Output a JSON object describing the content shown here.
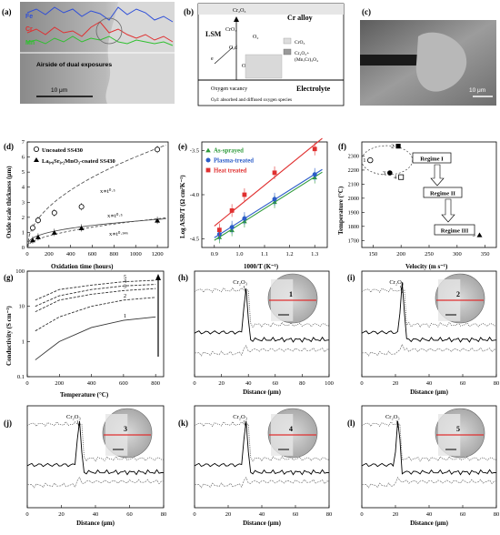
{
  "panel_letters": [
    "(a)",
    "(b)",
    "(c)",
    "(d)",
    "(e)",
    "(f)",
    "(g)",
    "(h)",
    "(i)",
    "(j)",
    "(k)",
    "(l)"
  ],
  "panel_a": {
    "elements": [
      "Fe",
      "Cr",
      "Mn"
    ],
    "caption": "Airside of dual exposures",
    "scale_bar": "10 μm",
    "colors": {
      "Fe": "#3050d8",
      "Cr": "#e03030",
      "Mn": "#30c030"
    }
  },
  "panel_b": {
    "cr2o3_top": "Cr₂O₃",
    "cr_alloy": "Cr alloy",
    "lsm": "LSM",
    "cro3": "CrO₃",
    "o2": "O₂",
    "o_ad": "Oₐd",
    "e": "e",
    "o2minus": "O²⁻",
    "legend_1": "CrO₃",
    "legend_2a": "Cr₂O₃+",
    "legend_2b": "(Mn,Cr)₃O₄",
    "oxygen_vacancy": "Oxygen vacancy",
    "electrolyte": "Electrolyte",
    "footnote": "Oₐd: absorbed and diffused oxygen species"
  },
  "panel_c": {
    "scale_bar": "10 μm"
  },
  "chart_data": [
    {
      "id": "d",
      "type": "scatter",
      "xlabel": "Oxidation time (hours)",
      "ylabel": "Oxide scale thickness (μm)",
      "xlim": [
        0,
        1300
      ],
      "ylim": [
        0,
        7
      ],
      "xticks": [
        "0",
        "200",
        "400",
        "600",
        "800",
        "1000",
        "1200"
      ],
      "yticks": [
        "0",
        "1",
        "2",
        "3",
        "4",
        "5",
        "6",
        "7"
      ],
      "legend": [
        "Uncoated SS430",
        "La₀.₈Sr₀.₂MnO₃-coated SS430"
      ],
      "series": [
        {
          "name": "Uncoated SS430",
          "x": [
            50,
            100,
            250,
            500,
            1200
          ],
          "y": [
            1.3,
            1.8,
            2.3,
            2.7,
            6.5
          ]
        },
        {
          "name": "La₀.₈Sr₀.₂MnO₃-coated SS430",
          "x": [
            50,
            100,
            250,
            500,
            1200
          ],
          "y": [
            0.5,
            0.7,
            1.0,
            1.3,
            1.8
          ]
        }
      ],
      "annotations": [
        "x∝t⁰·⁵",
        "x∝t⁰·⁵",
        "x∝t⁰·³⁴⁶"
      ]
    },
    {
      "id": "e",
      "type": "scatter",
      "xlabel": "1000/T (K⁻¹)",
      "ylabel": "Log ASR/T (Ω cm²K⁻¹)",
      "xlim": [
        0.85,
        1.35
      ],
      "ylim": [
        -4.6,
        -3.4
      ],
      "xticks": [
        "0.9",
        "1.0",
        "1.1",
        "1.2",
        "1.3"
      ],
      "yticks": [
        "-4.5",
        "-4.0",
        "-3.5"
      ],
      "series": [
        {
          "name": "As-sprayed",
          "color": "#2e9a3a",
          "x": [
            0.92,
            0.97,
            1.02,
            1.14,
            1.3
          ],
          "y": [
            -4.48,
            -4.4,
            -4.3,
            -4.08,
            -3.8
          ]
        },
        {
          "name": "Plasma-treated",
          "color": "#2b5cc8",
          "x": [
            0.92,
            0.97,
            1.02,
            1.14,
            1.3
          ],
          "y": [
            -4.45,
            -4.37,
            -4.27,
            -4.05,
            -3.77
          ]
        },
        {
          "name": "Heat treated",
          "color": "#e03030",
          "x": [
            0.92,
            0.97,
            1.02,
            1.14,
            1.3
          ],
          "y": [
            -4.4,
            -4.18,
            -4.0,
            -3.75,
            -3.48
          ]
        }
      ]
    },
    {
      "id": "f",
      "type": "scatter",
      "xlabel": "Velocity (m s⁻¹)",
      "ylabel": "Temperature (°C)",
      "xlim": [
        130,
        370
      ],
      "ylim": [
        1650,
        2400
      ],
      "xticks": [
        "150",
        "200",
        "250",
        "300",
        "350"
      ],
      "yticks": [
        "1700",
        "1800",
        "1900",
        "2000",
        "2100",
        "2200",
        "2300"
      ],
      "points": [
        {
          "label": "1",
          "x": 145,
          "y": 2270,
          "marker": "circle-open"
        },
        {
          "label": "2",
          "x": 195,
          "y": 2370,
          "marker": "square-filled"
        },
        {
          "label": "3",
          "x": 180,
          "y": 2180,
          "marker": "circle-filled"
        },
        {
          "label": "4",
          "x": 200,
          "y": 2150,
          "marker": "square-open"
        },
        {
          "label": "5",
          "x": 340,
          "y": 1740,
          "marker": "triangle-filled"
        }
      ],
      "regimes": [
        "Regime I",
        "Regime II",
        "Regime III"
      ]
    },
    {
      "id": "g",
      "type": "line",
      "xlabel": "Temperature (°C)",
      "ylabel": "Conductivity (S cm⁻¹)",
      "xticks": [
        "0",
        "200",
        "400",
        "600",
        "800"
      ],
      "yticks": [
        "0.1",
        "1",
        "10",
        "100"
      ],
      "xlim": [
        0,
        850
      ],
      "ylim": [
        0.1,
        100
      ],
      "yscale": "log",
      "series": [
        {
          "name": "1",
          "x": [
            50,
            200,
            400,
            600,
            800
          ],
          "y": [
            0.3,
            1.0,
            2.5,
            4.0,
            5.0
          ]
        },
        {
          "name": "2",
          "x": [
            50,
            200,
            400,
            600,
            800
          ],
          "y": [
            2.0,
            5.0,
            10,
            15,
            18
          ]
        },
        {
          "name": "3",
          "x": [
            50,
            200,
            400,
            600,
            800
          ],
          "y": [
            7.0,
            15,
            22,
            28,
            32
          ]
        },
        {
          "name": "4",
          "x": [
            50,
            200,
            400,
            600,
            800
          ],
          "y": [
            10,
            20,
            30,
            38,
            42
          ]
        },
        {
          "name": "5",
          "x": [
            50,
            200,
            400,
            600,
            800
          ],
          "y": [
            15,
            30,
            40,
            50,
            55
          ]
        }
      ]
    }
  ],
  "profiles": [
    {
      "id": "h",
      "label": "1",
      "peak_label": "Cr₂O₃",
      "xlabel": "Distance (μm)",
      "xticks": [
        "0",
        "20",
        "40",
        "60",
        "80",
        "100"
      ],
      "xmax": 100
    },
    {
      "id": "i",
      "label": "2",
      "peak_label": "Cr₂O₃",
      "xlabel": "Distance (μm)",
      "xticks": [
        "0",
        "20",
        "40",
        "60",
        "80"
      ],
      "xmax": 80
    },
    {
      "id": "j",
      "label": "3",
      "peak_label": "Cr₂O₃",
      "xlabel": "Distance (μm)",
      "xticks": [
        "0",
        "20",
        "40",
        "60",
        "80"
      ],
      "xmax": 80
    },
    {
      "id": "k",
      "label": "4",
      "peak_label": "Cr₂O₃",
      "xlabel": "Distance (μm)",
      "xticks": [
        "0",
        "20",
        "40",
        "60",
        "80"
      ],
      "xmax": 80
    },
    {
      "id": "l",
      "label": "5",
      "peak_label": "Cr₂O₃",
      "xlabel": "Distance (μm)",
      "xticks": [
        "0",
        "20",
        "40",
        "60",
        "80"
      ],
      "xmax": 80
    }
  ]
}
